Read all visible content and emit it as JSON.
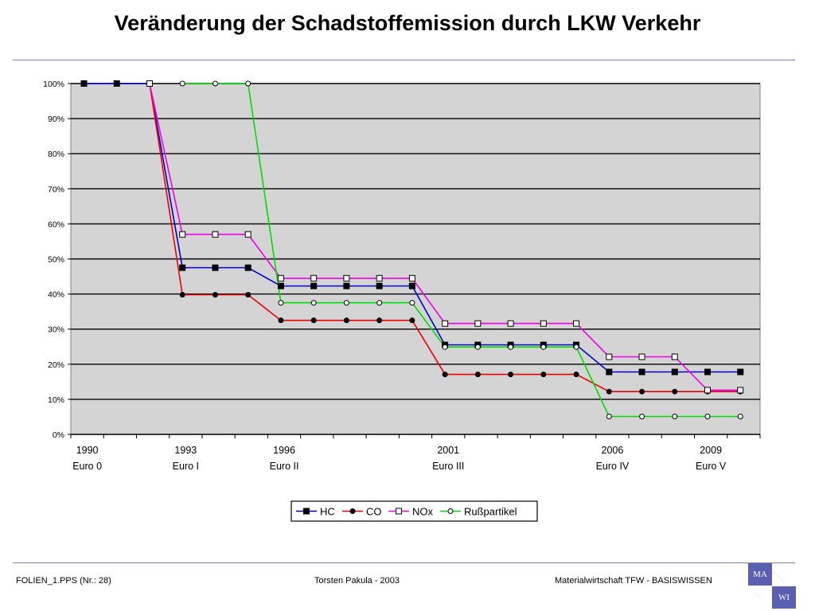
{
  "slide": {
    "title": "Veränderung der Schadstoffemission durch LKW Verkehr"
  },
  "footer": {
    "left": "FOLIEN_1.PPS (Nr.: 28)",
    "center": "Torsten Pakula - 2003",
    "right": "Materialwirtschaft TFW - BASISWISSEN"
  },
  "logo": {
    "top_box": "MA",
    "bottom_box": "WI"
  },
  "chart_data": {
    "type": "line",
    "title": "",
    "xlabel": "",
    "ylabel": "",
    "ylim": [
      0,
      100
    ],
    "grid": true,
    "legend_position": "bottom-center",
    "background_color": "#d4d4d4",
    "y_ticks": [
      "0%",
      "10%",
      "20%",
      "30%",
      "40%",
      "50%",
      "60%",
      "70%",
      "80%",
      "90%",
      "100%"
    ],
    "x_points": 21,
    "x_labels": [
      {
        "index": 0,
        "year": "1990",
        "norm": "Euro  0"
      },
      {
        "index": 3,
        "year": "1993",
        "norm": "Euro  I"
      },
      {
        "index": 6,
        "year": "1996",
        "norm": "Euro  II"
      },
      {
        "index": 11,
        "year": "2001",
        "norm": "Euro  III"
      },
      {
        "index": 16,
        "year": "2006",
        "norm": "Euro  IV"
      },
      {
        "index": 19,
        "year": "2009",
        "norm": "Euro  V"
      }
    ],
    "series": [
      {
        "name": "HC",
        "color": "#0000cc",
        "marker": "filled-square",
        "points": [
          [
            0.4,
            100
          ],
          [
            1.4,
            100
          ],
          [
            2.4,
            100
          ],
          [
            3.4,
            47.5
          ],
          [
            4.4,
            47.5
          ],
          [
            5.4,
            47.5
          ],
          [
            6.4,
            42.3
          ],
          [
            7.4,
            42.3
          ],
          [
            8.4,
            42.3
          ],
          [
            9.4,
            42.3
          ],
          [
            10.4,
            42.3
          ],
          [
            11.4,
            25.5
          ],
          [
            12.4,
            25.5
          ],
          [
            13.4,
            25.5
          ],
          [
            14.4,
            25.5
          ],
          [
            15.4,
            25.5
          ],
          [
            16.4,
            17.8
          ],
          [
            17.4,
            17.8
          ],
          [
            18.4,
            17.8
          ],
          [
            19.4,
            17.8
          ],
          [
            20.4,
            17.8
          ]
        ]
      },
      {
        "name": "CO",
        "color": "#ee0000",
        "marker": "filled-circle",
        "points": [
          [
            2.4,
            100
          ],
          [
            3.4,
            39.8
          ],
          [
            4.4,
            39.8
          ],
          [
            5.4,
            39.8
          ],
          [
            6.4,
            32.5
          ],
          [
            7.4,
            32.5
          ],
          [
            8.4,
            32.5
          ],
          [
            9.4,
            32.5
          ],
          [
            10.4,
            32.5
          ],
          [
            11.4,
            17.1
          ],
          [
            12.4,
            17.1
          ],
          [
            13.4,
            17.1
          ],
          [
            14.4,
            17.1
          ],
          [
            15.4,
            17.1
          ],
          [
            16.4,
            12.2
          ],
          [
            17.4,
            12.2
          ],
          [
            18.4,
            12.2
          ],
          [
            19.4,
            12.2
          ],
          [
            20.4,
            12.2
          ]
        ]
      },
      {
        "name": "NOx",
        "color": "#ee00ee",
        "marker": "open-square",
        "points": [
          [
            2.4,
            100
          ],
          [
            3.4,
            57
          ],
          [
            4.4,
            57
          ],
          [
            5.4,
            57
          ],
          [
            6.4,
            44.5
          ],
          [
            7.4,
            44.5
          ],
          [
            8.4,
            44.5
          ],
          [
            9.4,
            44.5
          ],
          [
            10.4,
            44.5
          ],
          [
            11.4,
            31.6
          ],
          [
            12.4,
            31.6
          ],
          [
            13.4,
            31.6
          ],
          [
            14.4,
            31.6
          ],
          [
            15.4,
            31.6
          ],
          [
            16.4,
            22.1
          ],
          [
            17.4,
            22.1
          ],
          [
            18.4,
            22.1
          ],
          [
            19.4,
            12.6
          ],
          [
            20.4,
            12.6
          ]
        ]
      },
      {
        "name": "Rußpartikel",
        "color": "#00dd00",
        "marker": "open-circle",
        "points": [
          [
            3.4,
            100
          ],
          [
            4.4,
            100
          ],
          [
            5.4,
            100
          ],
          [
            6.4,
            37.5
          ],
          [
            7.4,
            37.5
          ],
          [
            8.4,
            37.5
          ],
          [
            9.4,
            37.5
          ],
          [
            10.4,
            37.5
          ],
          [
            11.4,
            24.9
          ],
          [
            12.4,
            24.9
          ],
          [
            13.4,
            24.9
          ],
          [
            14.4,
            24.9
          ],
          [
            15.4,
            24.9
          ],
          [
            16.4,
            5.1
          ],
          [
            17.4,
            5.1
          ],
          [
            18.4,
            5.1
          ],
          [
            19.4,
            5.1
          ],
          [
            20.4,
            5.1
          ]
        ]
      }
    ]
  }
}
